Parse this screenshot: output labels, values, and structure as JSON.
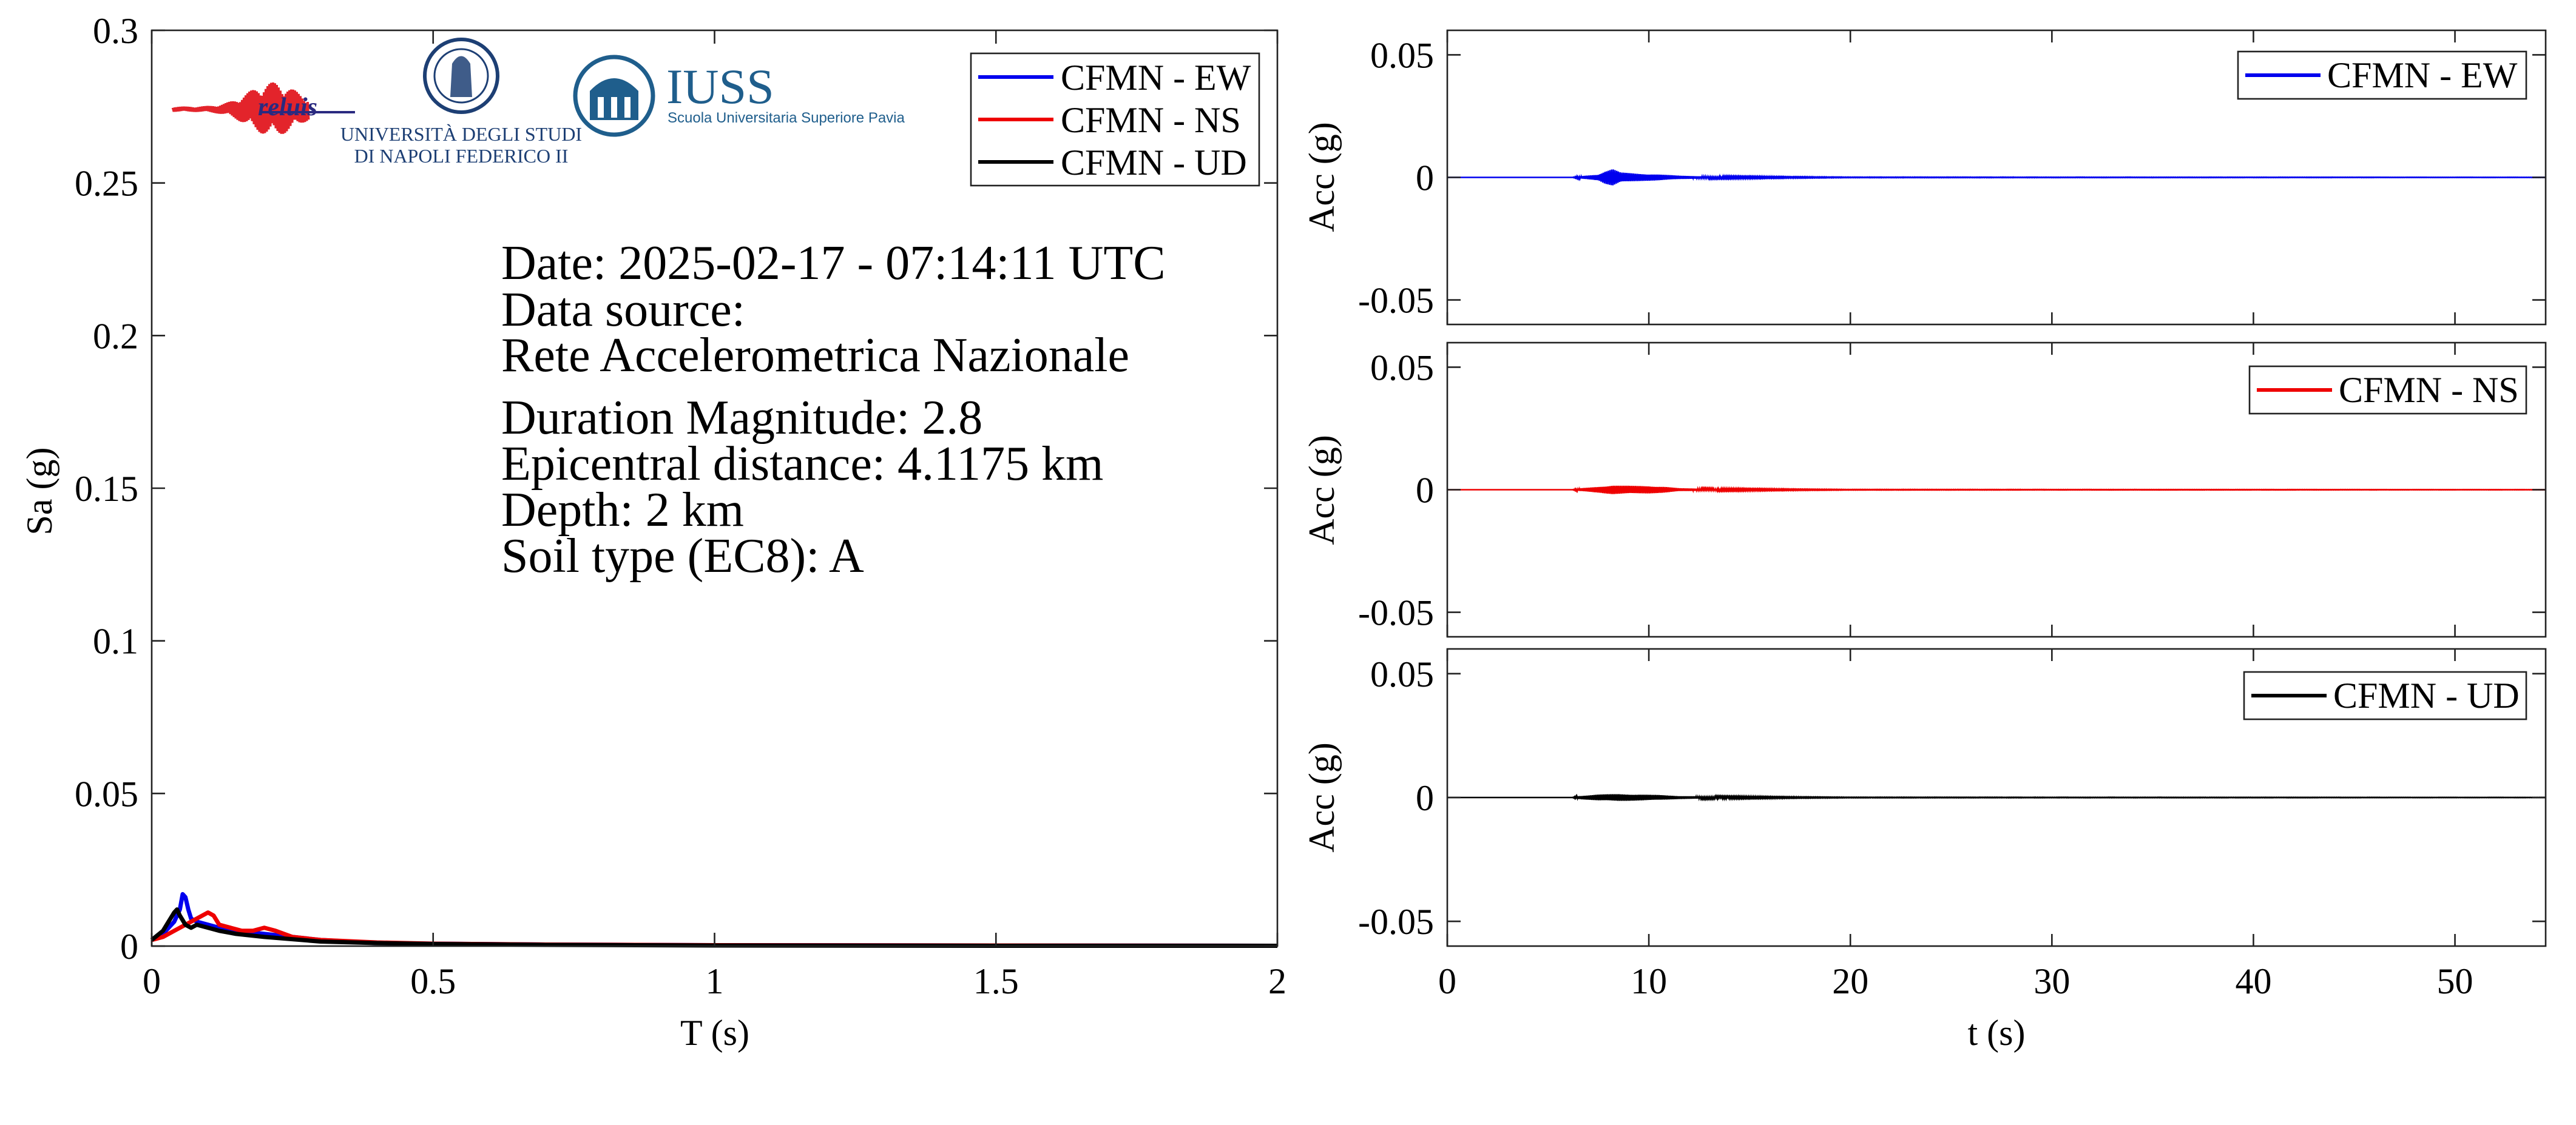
{
  "info": {
    "lines": [
      "Date: 2025-02-17 - 07:14:11 UTC",
      "Data source:",
      "Rete Accelerometrica Nazionale",
      "Duration Magnitude: 2.8",
      "Epicentral distance: 4.1175 km",
      "Depth: 2 km",
      "Soil type (EC8): A"
    ]
  },
  "logos": {
    "reluis": "reluis",
    "unina_line1": "UNIVERSITÀ DEGLI STUDI",
    "unina_line2": "DI NAPOLI FEDERICO II",
    "iuss_title": "IUSS",
    "iuss_sub": "Scuola Universitaria Superiore Pavia"
  },
  "colors": {
    "EW": "#0000ee",
    "NS": "#ee0000",
    "UD": "#000000"
  },
  "chart_data": [
    {
      "type": "line",
      "id": "spectrum",
      "xlabel": "T (s)",
      "ylabel": "Sa (g)",
      "xlim": [
        0,
        2
      ],
      "ylim": [
        0,
        0.3
      ],
      "xticks": [
        0,
        0.5,
        1,
        1.5,
        2
      ],
      "xtick_labels": [
        "0",
        "0.5",
        "1",
        "1.5",
        "2"
      ],
      "yticks": [
        0,
        0.05,
        0.1,
        0.15,
        0.2,
        0.25,
        0.3
      ],
      "ytick_labels": [
        "0",
        "0.05",
        "0.1",
        "0.15",
        "0.2",
        "0.25",
        "0.3"
      ],
      "legend_position": "top-right",
      "grid": false,
      "series": [
        {
          "name": "CFMN - EW",
          "color": "#0000ee",
          "x": [
            0,
            0.02,
            0.04,
            0.05,
            0.055,
            0.06,
            0.065,
            0.07,
            0.08,
            0.1,
            0.12,
            0.15,
            0.2,
            0.25,
            0.3,
            0.4,
            0.5,
            0.7,
            1,
            1.5,
            2
          ],
          "y": [
            0.002,
            0.004,
            0.008,
            0.012,
            0.017,
            0.016,
            0.012,
            0.009,
            0.008,
            0.007,
            0.006,
            0.005,
            0.004,
            0.003,
            0.002,
            0.001,
            0.0008,
            0.0005,
            0.0003,
            0.0002,
            0.0001
          ]
        },
        {
          "name": "CFMN - NS",
          "color": "#ee0000",
          "x": [
            0,
            0.02,
            0.04,
            0.06,
            0.08,
            0.1,
            0.11,
            0.12,
            0.14,
            0.16,
            0.18,
            0.2,
            0.22,
            0.25,
            0.3,
            0.4,
            0.5,
            0.7,
            1,
            1.5,
            2
          ],
          "y": [
            0.002,
            0.003,
            0.005,
            0.007,
            0.009,
            0.011,
            0.01,
            0.007,
            0.006,
            0.005,
            0.005,
            0.006,
            0.005,
            0.003,
            0.002,
            0.0012,
            0.0008,
            0.0005,
            0.0003,
            0.0002,
            0.0001
          ]
        },
        {
          "name": "CFMN - UD",
          "color": "#000000",
          "x": [
            0,
            0.02,
            0.03,
            0.04,
            0.045,
            0.05,
            0.06,
            0.07,
            0.08,
            0.1,
            0.12,
            0.15,
            0.2,
            0.3,
            0.4,
            0.5,
            0.7,
            1,
            1.5,
            2
          ],
          "y": [
            0.002,
            0.005,
            0.008,
            0.011,
            0.012,
            0.01,
            0.007,
            0.006,
            0.007,
            0.006,
            0.005,
            0.004,
            0.003,
            0.0015,
            0.001,
            0.0007,
            0.0004,
            0.0002,
            0.0001,
            0.0001
          ]
        }
      ]
    },
    {
      "type": "line",
      "id": "acc-ew",
      "ylabel": "Acc (g)",
      "xlim": [
        0,
        54.5
      ],
      "ylim": [
        -0.06,
        0.06
      ],
      "yticks": [
        -0.05,
        0,
        0.05
      ],
      "ytick_labels": [
        "-0.05",
        "0",
        "0.05"
      ],
      "legend_position": "top-right",
      "series": [
        {
          "name": "CFMN - EW",
          "color": "#0000ee",
          "envelope": {
            "t": [
              0,
              6.2,
              6.5,
              7.5,
              7.8,
              8.2,
              8.6,
              9.5,
              10.5,
              11.5,
              13,
              15,
              17,
              20,
              54.5
            ],
            "amp": [
              0,
              0,
              0.0004,
              0.0012,
              0.0025,
              0.0035,
              0.002,
              0.0015,
              0.0012,
              0.0007,
              0.0004,
              0.0003,
              0.0002,
              0.0001,
              5e-05
            ]
          }
        }
      ]
    },
    {
      "type": "line",
      "id": "acc-ns",
      "ylabel": "Acc (g)",
      "xlim": [
        0,
        54.5
      ],
      "ylim": [
        -0.06,
        0.06
      ],
      "yticks": [
        -0.05,
        0,
        0.05
      ],
      "ytick_labels": [
        "-0.05",
        "0",
        "0.05"
      ],
      "legend_position": "top-right",
      "series": [
        {
          "name": "CFMN - NS",
          "color": "#ee0000",
          "envelope": {
            "t": [
              0,
              6.2,
              6.5,
              7.5,
              8.2,
              9,
              10,
              10.8,
              11.5,
              13,
              15,
              17,
              20,
              54.5
            ],
            "amp": [
              0,
              0,
              0.0005,
              0.0012,
              0.0018,
              0.0016,
              0.0015,
              0.0012,
              0.0006,
              0.0004,
              0.0003,
              0.0002,
              0.0001,
              5e-05
            ]
          }
        }
      ]
    },
    {
      "type": "line",
      "id": "acc-ud",
      "xlabel": "t (s)",
      "ylabel": "Acc (g)",
      "xlim": [
        0,
        54.5
      ],
      "ylim": [
        -0.06,
        0.06
      ],
      "xticks": [
        0,
        10,
        20,
        30,
        40,
        50
      ],
      "xtick_labels": [
        "0",
        "10",
        "20",
        "30",
        "40",
        "50"
      ],
      "yticks": [
        -0.05,
        0,
        0.05
      ],
      "ytick_labels": [
        "-0.05",
        "0",
        "0.05"
      ],
      "legend_position": "top-right",
      "series": [
        {
          "name": "CFMN - UD",
          "color": "#000000",
          "envelope": {
            "t": [
              0,
              6.2,
              6.5,
              7.5,
              8.5,
              9.5,
              10.5,
              11.5,
              13,
              15,
              17,
              20,
              54.5
            ],
            "amp": [
              0,
              0,
              0.0006,
              0.0012,
              0.0014,
              0.0012,
              0.001,
              0.0006,
              0.0004,
              0.0003,
              0.0002,
              0.0001,
              5e-05
            ]
          }
        }
      ]
    }
  ]
}
